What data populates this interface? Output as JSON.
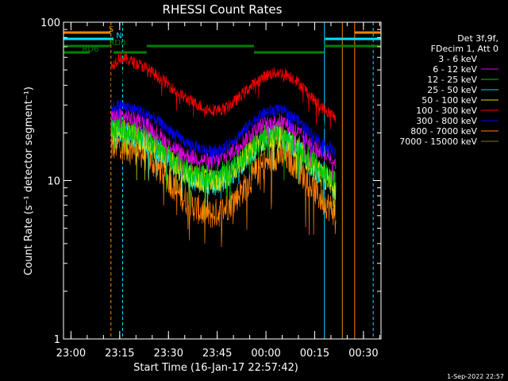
{
  "chart_data": {
    "type": "line",
    "title": "RHESSI Count Rates",
    "xlabel": "Start Time (16-Jan-17 22:57:42)",
    "ylabel": "Count Rate (s⁻¹ detector segment⁻¹)",
    "yscale": "log",
    "ylim": [
      1,
      100
    ],
    "xlim": [
      "22:57:42",
      "00:35:45"
    ],
    "x_ticks": [
      "23:00",
      "23:15",
      "23:30",
      "23:45",
      "00:00",
      "00:15",
      "00:30"
    ],
    "y_ticks": [
      "1",
      "10",
      "100"
    ],
    "x_unit": "minutes after 22:57:42",
    "x_tick_values": [
      2.3,
      17.3,
      32.3,
      47.3,
      62.3,
      77.3,
      92.3
    ],
    "legend_header": [
      "Det 3f,9f,",
      "FDecim 1, Att 0"
    ],
    "legend_placement": "right",
    "footer": "1-Sep-2022 22:57",
    "data_start_min": 14.6,
    "data_end_min": 83.8,
    "series": [
      {
        "name": "3 - 6 keV",
        "color": "#000000",
        "values": [
          40,
          46,
          45,
          43,
          41,
          38,
          35,
          32,
          30,
          28,
          26,
          25,
          24,
          24,
          25,
          27,
          30,
          33,
          36,
          38,
          39,
          38,
          35,
          31,
          27,
          24,
          22,
          21
        ]
      },
      {
        "name": "6 - 12 keV",
        "color": "#e000e0",
        "values": [
          25,
          26,
          25,
          24,
          23,
          21,
          19,
          17,
          15.5,
          14.5,
          14,
          13.5,
          13.2,
          13.5,
          14.5,
          16,
          18,
          20,
          22,
          23,
          24,
          23,
          21,
          19,
          17,
          15.5,
          14.5,
          13
        ]
      },
      {
        "name": "12 - 25 keV",
        "color": "#00c800",
        "values": [
          21,
          22,
          21,
          20,
          19,
          17.5,
          16,
          14.5,
          13,
          12,
          11.2,
          10.8,
          10.6,
          10.8,
          11.5,
          12.8,
          14.5,
          16.5,
          18.5,
          19.5,
          20,
          19,
          17.5,
          15.5,
          13.5,
          12,
          10.8,
          9.8
        ]
      },
      {
        "name": "25 - 50 keV",
        "color": "#00e0e0",
        "values": [
          20,
          21,
          20,
          19,
          18,
          16.5,
          15,
          13.5,
          12,
          11,
          10.3,
          9.8,
          9.6,
          9.8,
          10.5,
          11.8,
          13.5,
          15.5,
          17.5,
          18.5,
          19,
          18,
          16.5,
          14.5,
          12.5,
          11,
          10,
          9
        ]
      },
      {
        "name": "50 - 100 keV",
        "color": "#e0e000",
        "values": [
          20,
          21,
          20,
          19,
          18,
          16.5,
          15,
          13.5,
          12,
          11,
          10.4,
          10,
          9.8,
          10,
          10.7,
          12,
          13.8,
          15.8,
          17.8,
          18.8,
          19.2,
          18.2,
          16.8,
          14.8,
          12.8,
          11.2,
          10.2,
          9.2
        ]
      },
      {
        "name": "100 - 300 keV",
        "color": "#ff0000",
        "values": [
          52,
          60,
          58,
          55,
          52,
          48,
          44,
          40,
          36,
          33,
          31,
          29,
          28,
          28,
          29,
          32,
          36,
          40,
          44,
          47,
          48,
          47,
          44,
          39,
          34,
          30,
          27,
          25
        ]
      },
      {
        "name": "300 - 800 keV",
        "color": "#0000ff",
        "values": [
          29,
          30,
          29,
          28,
          27,
          25,
          23,
          21,
          19,
          17.5,
          16.5,
          15.8,
          15.3,
          15.5,
          16.5,
          18.5,
          21,
          23.5,
          26,
          27.5,
          28,
          27,
          25,
          22.5,
          20,
          18,
          16.5,
          15
        ]
      },
      {
        "name": "800 - 7000 keV",
        "color": "#ff8000",
        "values": [
          16,
          17,
          16.5,
          15.5,
          14.5,
          13,
          11.5,
          10,
          8.5,
          7.5,
          6.8,
          6.3,
          6.1,
          6.3,
          6.9,
          7.8,
          9,
          10.5,
          12,
          13.5,
          14.5,
          14,
          12.8,
          11,
          9.3,
          7.9,
          7,
          6.2
        ]
      },
      {
        "name": "7000 - 15000 keV",
        "color": "#808000",
        "values": []
      }
    ],
    "status_bars": [
      {
        "label": "S",
        "color": "#ff8000",
        "segments": [
          [
            0,
            14.5
          ],
          [
            89.5,
            97.7
          ]
        ]
      },
      {
        "label": "N",
        "color": "#00e0ff",
        "segments": [
          [
            0,
            15.4
          ],
          [
            80.5,
            97.7
          ]
        ]
      },
      {
        "label": "RD0",
        "color": "#008000",
        "segments": [
          [
            0,
            14.3
          ],
          [
            25.6,
            58.6
          ],
          [
            80.2,
            97.7
          ]
        ]
      },
      {
        "label": "RD6",
        "color": "#008000",
        "segments": [
          [
            0,
            8.1
          ],
          [
            15.4,
            25.6
          ],
          [
            58.6,
            80.2
          ]
        ]
      }
    ],
    "vertical_markers": [
      {
        "x": 0,
        "color": "#00e0ff",
        "style": "solid"
      },
      {
        "x": 14.6,
        "color": "#ff8000",
        "style": "dashed"
      },
      {
        "x": 18.2,
        "color": "#00e0ff",
        "style": "dashed"
      },
      {
        "x": 80.3,
        "color": "#00e0ff",
        "style": "solid"
      },
      {
        "x": 85.8,
        "color": "#ff8000",
        "style": "solid"
      },
      {
        "x": 89.6,
        "color": "#ff8000",
        "style": "solid"
      },
      {
        "x": 95.3,
        "color": "#00e0ff",
        "style": "dashed"
      }
    ]
  }
}
